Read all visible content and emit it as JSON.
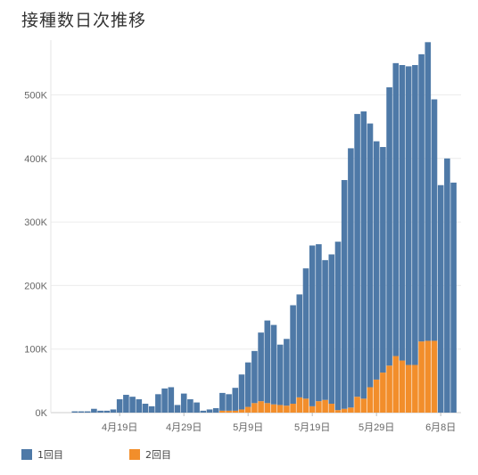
{
  "chart_data": {
    "type": "bar",
    "stacked": true,
    "title": "接種数日次推移",
    "x_tick_labels": [
      "4月19日",
      "4月29日",
      "5月9日",
      "5月19日",
      "5月29日",
      "6月8日"
    ],
    "y_ticks": [
      "0K",
      "100K",
      "200K",
      "300K",
      "400K",
      "500K"
    ],
    "ylim": [
      0,
      580000
    ],
    "grid": true,
    "legend_position": "bottom-left",
    "series": [
      {
        "name": "1回目",
        "color": "#4e79a7",
        "values": [
          2000,
          2000,
          2000,
          6000,
          3000,
          3000,
          5000,
          21000,
          28000,
          25000,
          21000,
          14000,
          10000,
          29000,
          38000,
          40000,
          12000,
          30000,
          21000,
          16000,
          3000,
          5000,
          7000,
          28000,
          26000,
          36000,
          55000,
          70000,
          82000,
          108000,
          130000,
          125000,
          95000,
          105000,
          155000,
          162000,
          205000,
          253000,
          247000,
          220000,
          235000,
          265000,
          360000,
          408000,
          445000,
          452000,
          415000,
          375000,
          355000,
          438000,
          461000,
          465000,
          470000,
          472000,
          452000,
          470000,
          380000,
          358000,
          400000,
          362000
        ]
      },
      {
        "name": "2回目",
        "color": "#f28e2b",
        "values": [
          0,
          0,
          0,
          0,
          0,
          0,
          0,
          0,
          0,
          0,
          0,
          0,
          0,
          0,
          0,
          0,
          0,
          0,
          0,
          0,
          0,
          0,
          0,
          3000,
          3000,
          3000,
          5000,
          9000,
          15000,
          18000,
          15000,
          13000,
          12000,
          11000,
          14000,
          24000,
          22000,
          10000,
          18000,
          20000,
          14000,
          4000,
          6000,
          8000,
          25000,
          22000,
          40000,
          52000,
          63000,
          74000,
          89000,
          82000,
          75000,
          75000,
          112000,
          113000,
          113000,
          0,
          0,
          0
        ]
      }
    ]
  },
  "legend": {
    "item1": {
      "label": "1回目",
      "color": "#4e79a7"
    },
    "item2": {
      "label": "2回目",
      "color": "#f28e2b"
    }
  }
}
